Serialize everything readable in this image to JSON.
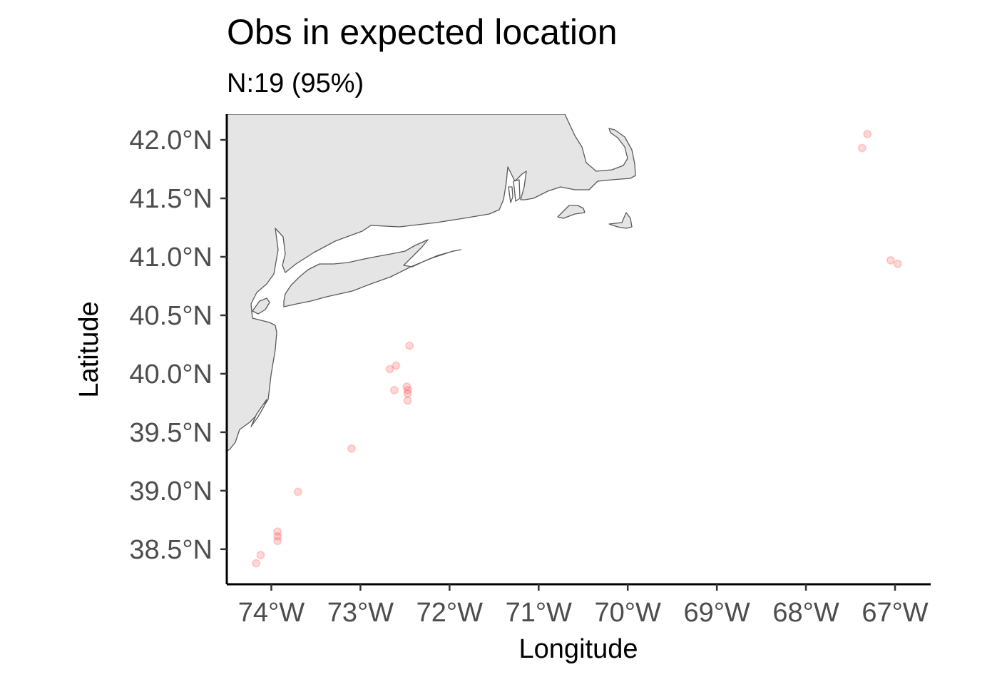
{
  "chart_data": {
    "type": "scatter",
    "title": "Obs in expected location",
    "subtitle": "N:19 (95%)",
    "xlabel": "Longitude",
    "ylabel": "Latitude",
    "xlim": [
      -74.5,
      -66.6
    ],
    "ylim": [
      38.2,
      42.22
    ],
    "x_ticks": [
      {
        "value": -74,
        "label": "74°W"
      },
      {
        "value": -73,
        "label": "73°W"
      },
      {
        "value": -72,
        "label": "72°W"
      },
      {
        "value": -71,
        "label": "71°W"
      },
      {
        "value": -70,
        "label": "70°W"
      },
      {
        "value": -69,
        "label": "69°W"
      },
      {
        "value": -68,
        "label": "68°W"
      },
      {
        "value": -67,
        "label": "67°W"
      }
    ],
    "y_ticks": [
      {
        "value": 38.5,
        "label": "38.5°N"
      },
      {
        "value": 39.0,
        "label": "39.0°N"
      },
      {
        "value": 39.5,
        "label": "39.5°N"
      },
      {
        "value": 40.0,
        "label": "40.0°N"
      },
      {
        "value": 40.5,
        "label": "40.5°N"
      },
      {
        "value": 41.0,
        "label": "41.0°N"
      },
      {
        "value": 41.5,
        "label": "41.5°N"
      },
      {
        "value": 42.0,
        "label": "42.0°N"
      }
    ],
    "points": [
      {
        "lon": -74.17,
        "lat": 38.38
      },
      {
        "lon": -74.12,
        "lat": 38.45
      },
      {
        "lon": -73.93,
        "lat": 38.57
      },
      {
        "lon": -73.93,
        "lat": 38.61
      },
      {
        "lon": -73.93,
        "lat": 38.65
      },
      {
        "lon": -73.7,
        "lat": 38.99
      },
      {
        "lon": -73.1,
        "lat": 39.36
      },
      {
        "lon": -72.47,
        "lat": 39.77
      },
      {
        "lon": -72.47,
        "lat": 39.83
      },
      {
        "lon": -72.47,
        "lat": 39.86
      },
      {
        "lon": -72.48,
        "lat": 39.89
      },
      {
        "lon": -72.62,
        "lat": 39.86
      },
      {
        "lon": -72.67,
        "lat": 40.04
      },
      {
        "lon": -72.6,
        "lat": 40.07
      },
      {
        "lon": -72.45,
        "lat": 40.24
      },
      {
        "lon": -67.37,
        "lat": 41.93
      },
      {
        "lon": -67.31,
        "lat": 42.05
      },
      {
        "lon": -67.05,
        "lat": 40.97
      },
      {
        "lon": -66.97,
        "lat": 40.94
      }
    ],
    "point_color": "#ff0000",
    "point_alpha": 0.15,
    "land_color": "#e5e5e5",
    "coastline_color": "#5a5a5a",
    "grid": false,
    "legend": "none"
  }
}
